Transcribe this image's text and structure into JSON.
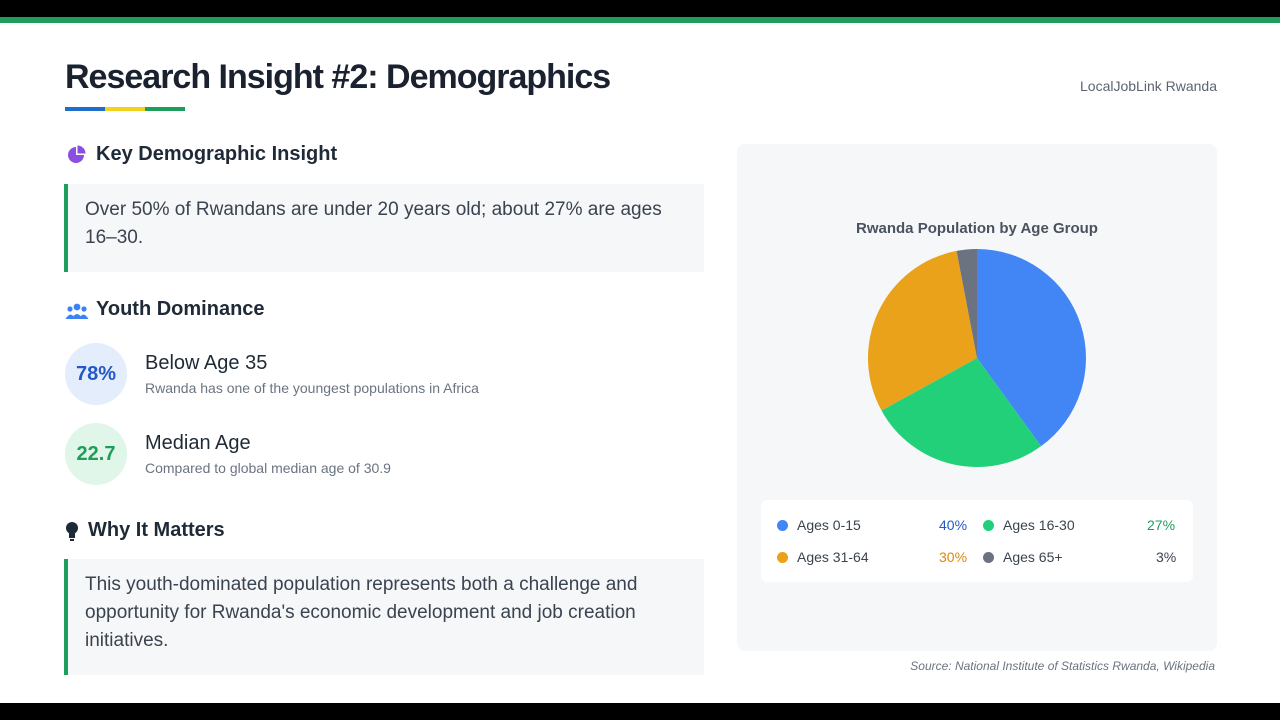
{
  "header": {
    "title": "Research Insight #2: Demographics",
    "brand": "LocalJobLink Rwanda",
    "underline_colors": [
      "#1f6fc9",
      "#f2d21b",
      "#1e9e5a"
    ]
  },
  "key_insight": {
    "heading": "Key Demographic Insight",
    "icon": "pie-chart-icon",
    "text": "Over 50% of Rwandans are under 20 years old; about 27% are ages 16–30."
  },
  "youth": {
    "heading": "Youth Dominance",
    "icon": "users-icon",
    "stats": [
      {
        "value": "78%",
        "title": "Below Age 35",
        "subtitle": "Rwanda has one of the youngest populations in Africa",
        "color": "#2458c6",
        "bg": "#e3edfb"
      },
      {
        "value": "22.7",
        "title": "Median Age",
        "subtitle": "Compared to global median age of 30.9",
        "color": "#1e9e5a",
        "bg": "#dff6e8"
      }
    ]
  },
  "why": {
    "heading": "Why It Matters",
    "icon": "lightbulb-icon",
    "text": "This youth-dominated population represents both a challenge and opportunity for Rwanda's economic development and job creation initiatives."
  },
  "chart_data": {
    "type": "pie",
    "title": "Rwanda Population by Age Group",
    "categories": [
      "Ages 0-15",
      "Ages 16-30",
      "Ages 31-64",
      "Ages 65+"
    ],
    "values": [
      40,
      27,
      30,
      3
    ],
    "labels": [
      "40%",
      "27%",
      "30%",
      "3%"
    ],
    "colors": [
      "#4285f4",
      "#22d07a",
      "#e9a219",
      "#6b7280"
    ],
    "label_colors": [
      "#2458c6",
      "#1e9e5a",
      "#d9890c",
      "#3a4350"
    ]
  },
  "source": "Source: National Institute of Statistics Rwanda, Wikipedia"
}
